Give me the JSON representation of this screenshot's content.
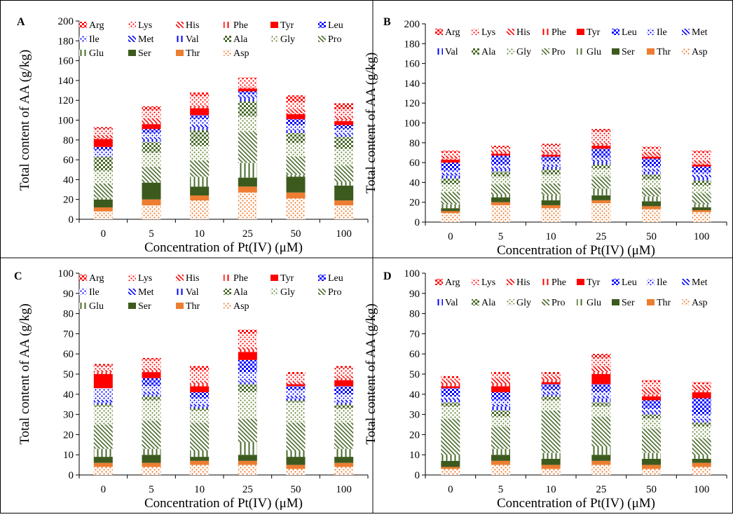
{
  "chart_data": [
    {
      "panel": "A",
      "type": "bar",
      "stacked": true,
      "categories": [
        "0",
        "5",
        "10",
        "25",
        "50",
        "100"
      ],
      "xlabel": "Concentration of Pt(IV) (μM)",
      "ylabel": "Total content of AA (g/kg)",
      "ylim": [
        0,
        200
      ],
      "yticks": [
        0,
        20,
        40,
        60,
        80,
        100,
        120,
        140,
        160,
        180,
        200
      ],
      "legend_order": [
        "Arg",
        "Lys",
        "His",
        "Phe",
        "Tyr",
        "Leu",
        "Ile",
        "Met",
        "Val",
        "Ala",
        "Gly",
        "Pro",
        "Glu",
        "Ser",
        "Thr",
        "Asp"
      ],
      "series": [
        {
          "name": "Asp",
          "values": [
            8,
            14,
            19,
            27,
            21,
            14
          ]
        },
        {
          "name": "Thr",
          "values": [
            4,
            6,
            5,
            6,
            6,
            5
          ]
        },
        {
          "name": "Ser",
          "values": [
            8,
            17,
            9,
            9,
            16,
            15
          ]
        },
        {
          "name": "Glu",
          "values": [
            2,
            1,
            10,
            15,
            2,
            4
          ]
        },
        {
          "name": "Pro",
          "values": [
            14,
            15,
            16,
            31,
            18,
            16
          ]
        },
        {
          "name": "Gly",
          "values": [
            13,
            14,
            15,
            16,
            14,
            17
          ]
        },
        {
          "name": "Ala",
          "values": [
            14,
            11,
            16,
            15,
            10,
            12
          ]
        },
        {
          "name": "Val",
          "values": [
            0,
            3,
            2,
            3,
            3,
            2
          ]
        },
        {
          "name": "Met",
          "values": [
            0,
            1,
            3,
            2,
            1,
            1
          ]
        },
        {
          "name": "Ile",
          "values": [
            7,
            5,
            6,
            2,
            4,
            5
          ]
        },
        {
          "name": "Leu",
          "values": [
            3,
            4,
            4,
            3,
            6,
            4
          ]
        },
        {
          "name": "Tyr",
          "values": [
            8,
            5,
            7,
            3,
            5,
            4
          ]
        },
        {
          "name": "Phe",
          "values": [
            1,
            1,
            1,
            1,
            1,
            1
          ]
        },
        {
          "name": "His",
          "values": [
            3,
            5,
            2,
            1,
            4,
            3
          ]
        },
        {
          "name": "Lys",
          "values": [
            6,
            8,
            9,
            8,
            7,
            8
          ]
        },
        {
          "name": "Arg",
          "values": [
            2,
            4,
            4,
            1,
            7,
            6
          ]
        }
      ]
    },
    {
      "panel": "B",
      "type": "bar",
      "stacked": true,
      "categories": [
        "0",
        "5",
        "10",
        "25",
        "50",
        "100"
      ],
      "xlabel": "Concentration of Pt(IV) (μM)",
      "ylabel": "Total content of AA (g/kg)",
      "ylim": [
        0,
        200
      ],
      "yticks": [
        0,
        20,
        40,
        60,
        80,
        100,
        120,
        140,
        160,
        180,
        200
      ],
      "legend_order": [
        "Arg",
        "Lys",
        "His",
        "Phe",
        "Tyr",
        "Leu",
        "Ile",
        "Met",
        "Val",
        "Ala",
        "Gly",
        "Pro",
        "Glu",
        "Ser",
        "Thr",
        "Asp"
      ],
      "series": [
        {
          "name": "Asp",
          "values": [
            9,
            17,
            14,
            19,
            13,
            10
          ]
        },
        {
          "name": "Thr",
          "values": [
            2,
            3,
            3,
            3,
            3,
            2
          ]
        },
        {
          "name": "Ser",
          "values": [
            3,
            5,
            5,
            5,
            5,
            3
          ]
        },
        {
          "name": "Glu",
          "values": [
            4,
            3,
            5,
            7,
            5,
            3
          ]
        },
        {
          "name": "Pro",
          "values": [
            12,
            10,
            12,
            12,
            9,
            11
          ]
        },
        {
          "name": "Gly",
          "values": [
            8,
            8,
            9,
            8,
            8,
            8
          ]
        },
        {
          "name": "Ala",
          "values": [
            6,
            5,
            5,
            4,
            5,
            5
          ]
        },
        {
          "name": "Val",
          "values": [
            3,
            2,
            3,
            3,
            3,
            3
          ]
        },
        {
          "name": "Met",
          "values": [
            2,
            2,
            2,
            2,
            2,
            2
          ]
        },
        {
          "name": "Ile",
          "values": [
            3,
            3,
            3,
            2,
            3,
            3
          ]
        },
        {
          "name": "Leu",
          "values": [
            8,
            9,
            5,
            9,
            8,
            6
          ]
        },
        {
          "name": "Tyr",
          "values": [
            3,
            2,
            2,
            3,
            2,
            2
          ]
        },
        {
          "name": "Phe",
          "values": [
            1,
            1,
            1,
            1,
            1,
            1
          ]
        },
        {
          "name": "His",
          "values": [
            3,
            2,
            3,
            2,
            3,
            3
          ]
        },
        {
          "name": "Lys",
          "values": [
            3,
            3,
            5,
            11,
            4,
            8
          ]
        },
        {
          "name": "Arg",
          "values": [
            2,
            2,
            2,
            3,
            2,
            2
          ]
        }
      ]
    },
    {
      "panel": "C",
      "type": "bar",
      "stacked": true,
      "categories": [
        "0",
        "5",
        "10",
        "25",
        "50",
        "100"
      ],
      "xlabel": "Concentration of Pt(IV) (μM)",
      "ylabel": "Total content of AA (g/kg)",
      "ylim": [
        0,
        100
      ],
      "yticks": [
        0,
        10,
        20,
        30,
        40,
        50,
        60,
        70,
        80,
        90,
        100
      ],
      "legend_order": [
        "Arg",
        "Lys",
        "His",
        "Phe",
        "Tyr",
        "Leu",
        "Ile",
        "Met",
        "Val",
        "Ala",
        "Gly",
        "Pro",
        "Glu",
        "Ser",
        "Thr",
        "Asp"
      ],
      "series": [
        {
          "name": "Asp",
          "values": [
            4,
            4,
            5,
            5,
            3,
            4
          ]
        },
        {
          "name": "Thr",
          "values": [
            2,
            2,
            2,
            2,
            2,
            2
          ]
        },
        {
          "name": "Ser",
          "values": [
            3,
            4,
            2,
            3,
            4,
            3
          ]
        },
        {
          "name": "Glu",
          "values": [
            4,
            3,
            3,
            6,
            3,
            4
          ]
        },
        {
          "name": "Pro",
          "values": [
            12,
            14,
            14,
            12,
            14,
            13
          ]
        },
        {
          "name": "Gly",
          "values": [
            9,
            10,
            6,
            13,
            10,
            7
          ]
        },
        {
          "name": "Ala",
          "values": [
            1,
            2,
            1,
            4,
            1,
            2
          ]
        },
        {
          "name": "Val",
          "values": [
            1,
            1,
            1,
            1,
            1,
            1
          ]
        },
        {
          "name": "Met",
          "values": [
            1,
            1,
            1,
            1,
            1,
            1
          ]
        },
        {
          "name": "Ile",
          "values": [
            6,
            3,
            3,
            4,
            3,
            3
          ]
        },
        {
          "name": "Leu",
          "values": [
            0,
            4,
            3,
            6,
            2,
            4
          ]
        },
        {
          "name": "Tyr",
          "values": [
            7,
            3,
            3,
            4,
            1,
            3
          ]
        },
        {
          "name": "Phe",
          "values": [
            1,
            1,
            1,
            1,
            0,
            1
          ]
        },
        {
          "name": "His",
          "values": [
            1,
            1,
            1,
            1,
            1,
            1
          ]
        },
        {
          "name": "Lys",
          "values": [
            2,
            4,
            6,
            7,
            4,
            4
          ]
        },
        {
          "name": "Arg",
          "values": [
            1,
            1,
            2,
            2,
            1,
            1
          ]
        }
      ]
    },
    {
      "panel": "D",
      "type": "bar",
      "stacked": true,
      "categories": [
        "0",
        "5",
        "10",
        "25",
        "50",
        "100"
      ],
      "xlabel": "Concentration of Pt(IV) (μM)",
      "ylabel": "Total content of AA (g/kg)",
      "ylim": [
        0,
        100
      ],
      "yticks": [
        0,
        10,
        20,
        30,
        40,
        50,
        60,
        70,
        80,
        90,
        100
      ],
      "legend_order": [
        "Arg",
        "Lys",
        "His",
        "Phe",
        "Tyr",
        "Leu",
        "Ile",
        "Met",
        "Val",
        "Ala",
        "Gly",
        "Pro",
        "Glu",
        "Ser",
        "Thr",
        "Asp"
      ],
      "series": [
        {
          "name": "Asp",
          "values": [
            3,
            5,
            3,
            5,
            3,
            4
          ]
        },
        {
          "name": "Thr",
          "values": [
            1,
            2,
            2,
            2,
            2,
            2
          ]
        },
        {
          "name": "Ser",
          "values": [
            3,
            3,
            3,
            3,
            3,
            2
          ]
        },
        {
          "name": "Glu",
          "values": [
            3,
            3,
            3,
            4,
            3,
            2
          ]
        },
        {
          "name": "Pro",
          "values": [
            18,
            11,
            21,
            15,
            12,
            8
          ]
        },
        {
          "name": "Gly",
          "values": [
            6,
            5,
            5,
            5,
            5,
            6
          ]
        },
        {
          "name": "Ala",
          "values": [
            2,
            3,
            2,
            2,
            2,
            2
          ]
        },
        {
          "name": "Val",
          "values": [
            1,
            2,
            1,
            2,
            1,
            1
          ]
        },
        {
          "name": "Met",
          "values": [
            1,
            1,
            1,
            1,
            1,
            1
          ]
        },
        {
          "name": "Ile",
          "values": [
            1,
            2,
            1,
            2,
            1,
            2
          ]
        },
        {
          "name": "Leu",
          "values": [
            4,
            4,
            3,
            4,
            4,
            8
          ]
        },
        {
          "name": "Tyr",
          "values": [
            1,
            3,
            1,
            5,
            2,
            3
          ]
        },
        {
          "name": "Phe",
          "values": [
            1,
            1,
            1,
            1,
            1,
            1
          ]
        },
        {
          "name": "His",
          "values": [
            2,
            3,
            2,
            3,
            3,
            2
          ]
        },
        {
          "name": "Lys",
          "values": [
            1,
            2,
            1,
            4,
            3,
            1
          ]
        },
        {
          "name": "Arg",
          "values": [
            1,
            1,
            1,
            2,
            1,
            1
          ]
        }
      ]
    }
  ],
  "colors": {
    "Arg": "#ff0000",
    "Lys": "#ff0000",
    "His": "#ff0000",
    "Phe": "#ff0000",
    "Tyr": "#ff0000",
    "Leu": "#0000ff",
    "Ile": "#0000ff",
    "Met": "#0000ff",
    "Val": "#0000ff",
    "Ala": "#4a6a2a",
    "Gly": "#6a8a3a",
    "Pro": "#4a6a2a",
    "Glu": "#4a6a2a",
    "Ser": "#3d5a1e",
    "Thr": "#ed7d31",
    "Asp": "#ed7d31"
  },
  "patterns": {
    "Arg": "checker",
    "Lys": "dots",
    "His": "bdiag",
    "Phe": "vert",
    "Tyr": "solid",
    "Leu": "checker",
    "Ile": "dots",
    "Met": "bdiag",
    "Val": "vert",
    "Ala": "checker",
    "Gly": "dots",
    "Pro": "bdiag",
    "Glu": "vert",
    "Ser": "solid",
    "Thr": "solid",
    "Asp": "dots"
  }
}
